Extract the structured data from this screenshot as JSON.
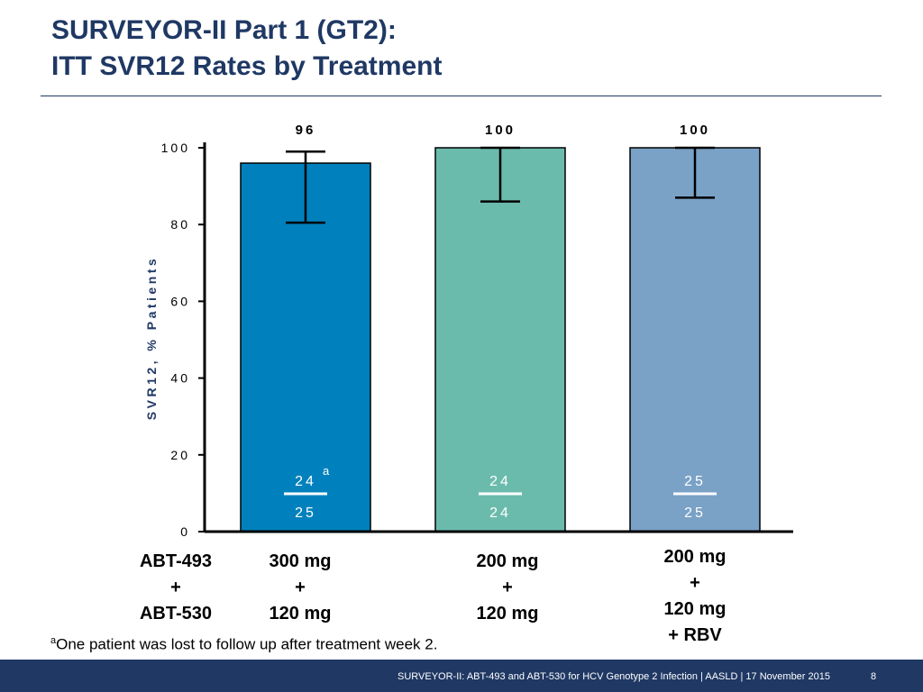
{
  "title": {
    "line1": "SURVEYOR-II Part 1 (GT2):",
    "line2": "ITT SVR12 Rates by Treatment"
  },
  "chart_data": {
    "type": "bar",
    "ylabel": "SVR12, % Patients",
    "ylim": [
      0,
      100
    ],
    "yticks": [
      0,
      20,
      40,
      60,
      80,
      100
    ],
    "grid": false,
    "row_header": [
      "ABT-493",
      "+",
      "ABT-530"
    ],
    "categories": [
      {
        "lines": [
          "300 mg",
          "+",
          "120 mg"
        ]
      },
      {
        "lines": [
          "200 mg",
          "+",
          "120 mg"
        ]
      },
      {
        "lines": [
          "200 mg",
          "+",
          "120 mg",
          "+ RBV"
        ]
      }
    ],
    "values": [
      96,
      100,
      100
    ],
    "value_labels": [
      "96",
      "100",
      "100"
    ],
    "error_bars": [
      {
        "low": 80.5,
        "high": 99
      },
      {
        "low": 86,
        "high": 100
      },
      {
        "low": 87,
        "high": 100
      }
    ],
    "fractions": [
      {
        "num": "24",
        "den": "25",
        "note": "a"
      },
      {
        "num": "24",
        "den": "24",
        "note": ""
      },
      {
        "num": "25",
        "den": "25",
        "note": ""
      }
    ],
    "colors": [
      "#0081bd",
      "#6bbbad",
      "#7aa1c6"
    ]
  },
  "footnote": {
    "mark": "a",
    "text": "One patient was lost to follow up after treatment week 2."
  },
  "footer": {
    "text": "SURVEYOR-II: ABT-493 and ABT-530 for HCV Genotype 2 Infection   | AASLD | 17 November 2015",
    "page": "8"
  }
}
